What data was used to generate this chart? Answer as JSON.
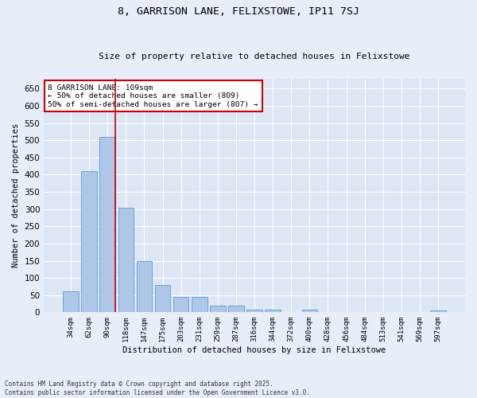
{
  "title1": "8, GARRISON LANE, FELIXSTOWE, IP11 7SJ",
  "title2": "Size of property relative to detached houses in Felixstowe",
  "xlabel": "Distribution of detached houses by size in Felixstowe",
  "ylabel": "Number of detached properties",
  "categories": [
    "34sqm",
    "62sqm",
    "90sqm",
    "118sqm",
    "147sqm",
    "175sqm",
    "203sqm",
    "231sqm",
    "259sqm",
    "287sqm",
    "316sqm",
    "344sqm",
    "372sqm",
    "400sqm",
    "428sqm",
    "456sqm",
    "484sqm",
    "513sqm",
    "541sqm",
    "569sqm",
    "597sqm"
  ],
  "values": [
    60,
    410,
    510,
    305,
    150,
    80,
    45,
    45,
    20,
    20,
    7,
    7,
    0,
    7,
    0,
    0,
    0,
    0,
    0,
    0,
    5
  ],
  "bar_color": "#aec6e8",
  "bar_edge_color": "#5b9bd5",
  "bg_color": "#dce6f5",
  "grid_color": "#ffffff",
  "vline_color": "#cc0000",
  "annotation_text": "8 GARRISON LANE: 109sqm\n← 50% of detached houses are smaller (809)\n50% of semi-detached houses are larger (807) →",
  "annotation_box_color": "#cc0000",
  "footer_text": "Contains HM Land Registry data © Crown copyright and database right 2025.\nContains public sector information licensed under the Open Government Licence v3.0.",
  "ylim": [
    0,
    680
  ],
  "yticks": [
    0,
    50,
    100,
    150,
    200,
    250,
    300,
    350,
    400,
    450,
    500,
    550,
    600,
    650
  ]
}
